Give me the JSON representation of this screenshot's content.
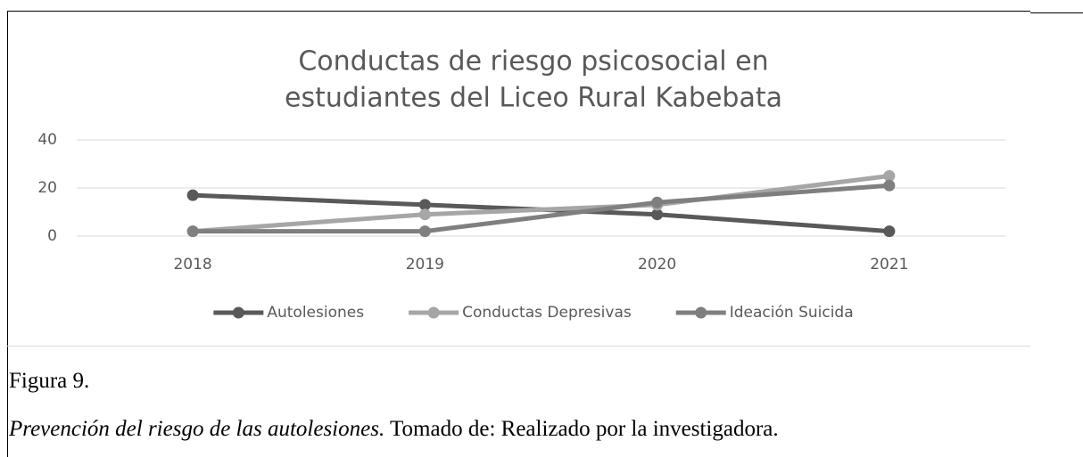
{
  "chart_data": {
    "type": "line",
    "title": [
      "Conductas de riesgo psicosocial en",
      "estudiantes del Liceo Rural Kabebata"
    ],
    "categories": [
      "2018",
      "2019",
      "2020",
      "2021"
    ],
    "series": [
      {
        "name": "Autolesiones",
        "color": "#595959",
        "values": [
          17,
          13,
          9,
          2
        ]
      },
      {
        "name": "Conductas Depresivas",
        "color": "#a6a6a6",
        "values": [
          2,
          9,
          13,
          25
        ]
      },
      {
        "name": "Ideación Suicida",
        "color": "#7f7f7f",
        "values": [
          2,
          2,
          14,
          21
        ]
      }
    ],
    "ylim": [
      0,
      40
    ],
    "yticks": [
      0,
      20,
      40
    ],
    "grid": true,
    "legend": "bottom"
  },
  "caption": {
    "label": "Figura 9.",
    "title": "Prevención del riesgo de las autolesiones.",
    "source": "Tomado de: Realizado por la investigadora."
  }
}
